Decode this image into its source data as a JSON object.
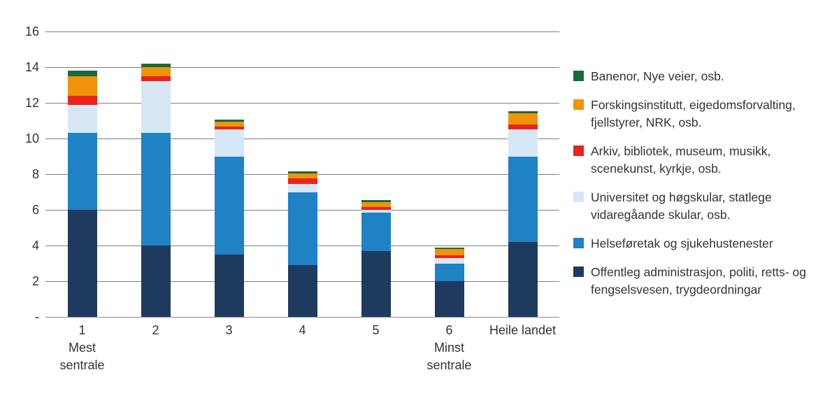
{
  "chart_data": {
    "type": "stacked-bar",
    "title": "",
    "categories": [
      "1",
      "2",
      "3",
      "4",
      "5",
      "6",
      "Heile landet"
    ],
    "category_sublabels": [
      "Mest sentrale",
      "",
      "",
      "",
      "",
      "Minst sentrale",
      ""
    ],
    "series": [
      {
        "name": "Offentleg administrasjon, politi, retts- og fengselsvesen, trygdeordningar",
        "color": "#1E3A5F",
        "values": [
          6.0,
          4.0,
          3.5,
          2.9,
          3.7,
          2.0,
          4.2
        ]
      },
      {
        "name": "Helseføretak og sjukehustenester",
        "color": "#1E82C4",
        "values": [
          4.3,
          6.3,
          5.5,
          4.1,
          2.15,
          1.0,
          4.8
        ]
      },
      {
        "name": "Universitet og høgskular, statlege vidaregåande skular, osb.",
        "color": "#D7E7F6",
        "values": [
          1.6,
          2.9,
          1.5,
          0.45,
          0.15,
          0.3,
          1.5
        ]
      },
      {
        "name": "Arkiv, bibliotek, museum, musikk, scenekunst, kyrkje, osb.",
        "color": "#E8241E",
        "values": [
          0.5,
          0.3,
          0.15,
          0.3,
          0.15,
          0.15,
          0.3
        ]
      },
      {
        "name": "Forskingsinstitutt, eigedomsforvalting, fjellstyrer, NRK, osb.",
        "color": "#F0930A",
        "values": [
          1.1,
          0.5,
          0.3,
          0.3,
          0.3,
          0.35,
          0.6
        ]
      },
      {
        "name": "Banenor, Nye veier, osb.",
        "color": "#1A6B3B",
        "values": [
          0.3,
          0.2,
          0.1,
          0.1,
          0.1,
          0.1,
          0.15
        ]
      }
    ],
    "totals": [
      13.8,
      14.2,
      11.05,
      8.15,
      6.55,
      3.9,
      11.55
    ],
    "ylim": [
      0,
      16
    ],
    "ytick_values": [
      16,
      14,
      12,
      10,
      8,
      6,
      4,
      2,
      0
    ],
    "ytick_labels": [
      "16",
      "14",
      "12",
      "10",
      "8",
      "6",
      "4",
      "2",
      "-"
    ],
    "grid": "horizontal",
    "legend_position": "right",
    "legend_order": "top-series-first",
    "colors": {
      "background": "#FFFFFF",
      "gridline": "#7F7F7F",
      "text": "#333333"
    }
  }
}
